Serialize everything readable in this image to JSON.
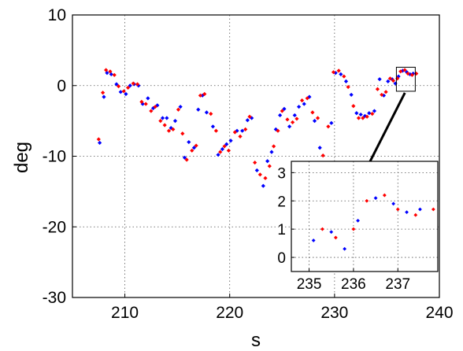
{
  "chart_data": {
    "type": "scatter",
    "title": "",
    "xlabel": "s",
    "ylabel": "deg",
    "xlim": [
      205,
      240
    ],
    "ylim": [
      -30,
      10
    ],
    "xticks": [
      "210",
      "220",
      "230",
      "240"
    ],
    "yticks": [
      "10",
      "0",
      "-10",
      "-20",
      "-30"
    ],
    "grid": true,
    "colors": {
      "series_a": "#0000ff",
      "series_b": "#ff0000",
      "arrow": "#000000"
    },
    "series": [
      {
        "color": "#0000ff",
        "points": [
          [
            207.6,
            -8.1
          ],
          [
            208.0,
            -1.6
          ],
          [
            208.3,
            1.8
          ],
          [
            208.7,
            1.6
          ],
          [
            209.2,
            0.2
          ],
          [
            209.6,
            -0.9
          ],
          [
            210.1,
            -1.2
          ],
          [
            210.5,
            0.0
          ],
          [
            210.9,
            0.2
          ],
          [
            211.3,
            0.0
          ],
          [
            211.7,
            -2.6
          ],
          [
            212.2,
            -1.8
          ],
          [
            212.7,
            -3.2
          ],
          [
            213.1,
            -2.8
          ],
          [
            213.6,
            -4.6
          ],
          [
            214.0,
            -4.6
          ],
          [
            214.4,
            -6.0
          ],
          [
            214.8,
            -5.0
          ],
          [
            215.3,
            -3.0
          ],
          [
            215.7,
            -10.2
          ],
          [
            216.1,
            -8.0
          ],
          [
            216.6,
            -8.8
          ],
          [
            217.0,
            -3.4
          ],
          [
            217.4,
            -1.4
          ],
          [
            217.8,
            -3.8
          ],
          [
            218.4,
            -5.8
          ],
          [
            218.9,
            -9.8
          ],
          [
            219.3,
            -9.0
          ],
          [
            219.7,
            -8.3
          ],
          [
            220.1,
            -7.8
          ],
          [
            220.7,
            -6.4
          ],
          [
            221.2,
            -6.4
          ],
          [
            221.7,
            -4.9
          ],
          [
            222.1,
            -4.6
          ],
          [
            222.6,
            -12.0
          ],
          [
            223.2,
            -14.2
          ],
          [
            223.6,
            -10.7
          ],
          [
            224.0,
            -9.4
          ],
          [
            224.4,
            -6.2
          ],
          [
            224.8,
            -4.2
          ],
          [
            225.2,
            -3.3
          ],
          [
            225.7,
            -5.8
          ],
          [
            226.2,
            -4.2
          ],
          [
            226.6,
            -3.0
          ],
          [
            227.1,
            -2.6
          ],
          [
            227.6,
            -1.6
          ],
          [
            228.1,
            -5.0
          ],
          [
            228.6,
            -8.8
          ],
          [
            229.2,
            -12.1
          ],
          [
            229.7,
            -5.3
          ],
          [
            230.1,
            1.8
          ],
          [
            230.6,
            1.6
          ],
          [
            231.1,
            0.6
          ],
          [
            231.6,
            -1.3
          ],
          [
            232.1,
            -3.9
          ],
          [
            232.5,
            -4.1
          ],
          [
            232.9,
            -4.3
          ],
          [
            233.3,
            -3.9
          ],
          [
            233.8,
            -3.6
          ],
          [
            234.3,
            0.9
          ],
          [
            234.7,
            -1.4
          ],
          [
            235.1,
            0.6
          ],
          [
            235.5,
            0.9
          ],
          [
            235.8,
            0.3
          ],
          [
            236.1,
            1.3
          ],
          [
            236.5,
            2.1
          ],
          [
            236.9,
            1.9
          ],
          [
            237.2,
            1.6
          ],
          [
            237.5,
            1.7
          ]
        ]
      },
      {
        "color": "#ff0000",
        "points": [
          [
            207.5,
            -7.6
          ],
          [
            207.9,
            -1.0
          ],
          [
            208.2,
            2.2
          ],
          [
            208.6,
            2.0
          ],
          [
            209.0,
            1.5
          ],
          [
            209.4,
            -0.1
          ],
          [
            209.9,
            -0.8
          ],
          [
            210.3,
            -0.3
          ],
          [
            210.8,
            0.3
          ],
          [
            211.2,
            0.2
          ],
          [
            211.6,
            -2.3
          ],
          [
            212.0,
            -2.6
          ],
          [
            212.5,
            -3.6
          ],
          [
            212.9,
            -3.0
          ],
          [
            213.4,
            -5.0
          ],
          [
            213.8,
            -5.6
          ],
          [
            214.2,
            -6.4
          ],
          [
            214.6,
            -6.2
          ],
          [
            215.1,
            -3.4
          ],
          [
            215.5,
            -6.8
          ],
          [
            215.9,
            -10.5
          ],
          [
            216.4,
            -9.2
          ],
          [
            216.8,
            -8.5
          ],
          [
            217.2,
            -1.4
          ],
          [
            217.6,
            -1.2
          ],
          [
            218.2,
            -4.0
          ],
          [
            218.7,
            -6.4
          ],
          [
            219.1,
            -9.4
          ],
          [
            219.5,
            -8.6
          ],
          [
            219.9,
            -9.2
          ],
          [
            220.5,
            -6.6
          ],
          [
            221.0,
            -7.2
          ],
          [
            221.5,
            -6.2
          ],
          [
            221.9,
            -4.4
          ],
          [
            222.4,
            -10.9
          ],
          [
            222.9,
            -12.6
          ],
          [
            223.4,
            -13.1
          ],
          [
            223.8,
            -11.4
          ],
          [
            224.2,
            -8.6
          ],
          [
            224.6,
            -6.4
          ],
          [
            225.0,
            -3.6
          ],
          [
            225.5,
            -4.8
          ],
          [
            226.0,
            -5.2
          ],
          [
            226.4,
            -4.7
          ],
          [
            226.9,
            -2.1
          ],
          [
            227.4,
            -1.8
          ],
          [
            227.9,
            -3.8
          ],
          [
            228.4,
            -4.6
          ],
          [
            228.9,
            -9.9
          ],
          [
            229.4,
            -5.8
          ],
          [
            229.9,
            1.9
          ],
          [
            230.4,
            2.1
          ],
          [
            230.9,
            1.3
          ],
          [
            231.3,
            -0.2
          ],
          [
            231.8,
            -2.9
          ],
          [
            232.3,
            -4.6
          ],
          [
            232.7,
            -4.6
          ],
          [
            233.1,
            -4.4
          ],
          [
            233.6,
            -4.0
          ],
          [
            234.1,
            -0.5
          ],
          [
            234.5,
            -1.3
          ],
          [
            234.9,
            -0.9
          ],
          [
            235.3,
            1.0
          ],
          [
            235.6,
            0.7
          ],
          [
            236.0,
            1.0
          ],
          [
            236.3,
            2.0
          ],
          [
            236.7,
            2.2
          ],
          [
            237.0,
            1.7
          ],
          [
            237.4,
            1.5
          ],
          [
            237.8,
            1.7
          ]
        ]
      }
    ],
    "inset": {
      "xlim": [
        234.6,
        237.9
      ],
      "ylim": [
        -0.5,
        3.4
      ],
      "xticks": [
        "235",
        "236",
        "237"
      ],
      "yticks": [
        "0",
        "1",
        "2",
        "3"
      ],
      "grid": true,
      "zoom_box": {
        "xlim": [
          235.9,
          237.7
        ],
        "ylim": [
          -0.8,
          2.6
        ]
      }
    }
  }
}
